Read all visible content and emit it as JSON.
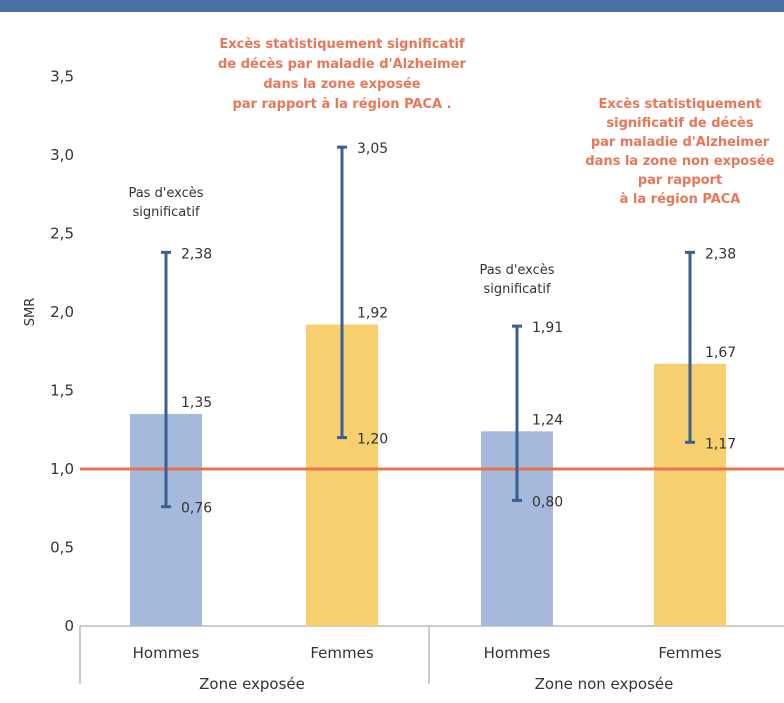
{
  "chart_data": {
    "type": "bar",
    "ylabel": "SMR",
    "ylim": [
      0,
      3.5
    ],
    "yticks": [
      "0",
      "0,5",
      "1,0",
      "1,5",
      "2,0",
      "2,5",
      "3,0",
      "3,5"
    ],
    "ytick_values": [
      0,
      0.5,
      1.0,
      1.5,
      2.0,
      2.5,
      3.0,
      3.5
    ],
    "categories": [
      "Hommes",
      "Femmes",
      "Hommes",
      "Femmes"
    ],
    "groups": [
      "Zone exposée",
      "Zone non exposée"
    ],
    "values": [
      1.35,
      1.92,
      1.24,
      1.67
    ],
    "value_labels": [
      "1,35",
      "1,92",
      "1,24",
      "1,67"
    ],
    "ci_low": [
      0.76,
      1.2,
      0.8,
      1.17
    ],
    "ci_low_labels": [
      "0,76",
      "1,20",
      "0,80",
      "1,17"
    ],
    "ci_high": [
      2.38,
      3.05,
      1.91,
      2.38
    ],
    "ci_high_labels": [
      "2,38",
      "3,05",
      "1,91",
      "2,38"
    ],
    "reference_line": 1.0,
    "bar_colors": [
      "#a5b9dd",
      "#f7cf6f",
      "#a5b9dd",
      "#f7cf6f"
    ],
    "colors": {
      "reference_line": "#e8734f",
      "error_bar": "#3b5f8e",
      "annotation_red": "#e8775a"
    },
    "annotations": [
      {
        "lines": [
          "Pas d'excès",
          "significatif"
        ],
        "style": "grey"
      },
      {
        "lines": [
          "Excès statistiquement significatif",
          "de décès par maladie d'Alzheimer",
          "dans la zone exposée",
          "par rapport à la région PACA ."
        ],
        "style": "red"
      },
      {
        "lines": [
          "Pas d'excès",
          "significatif"
        ],
        "style": "grey"
      },
      {
        "lines": [
          "Excès statistiquement",
          "significatif de décès",
          "par maladie d'Alzheimer",
          "dans la zone non exposée",
          "par rapport",
          "à la région PACA"
        ],
        "style": "red"
      }
    ]
  }
}
